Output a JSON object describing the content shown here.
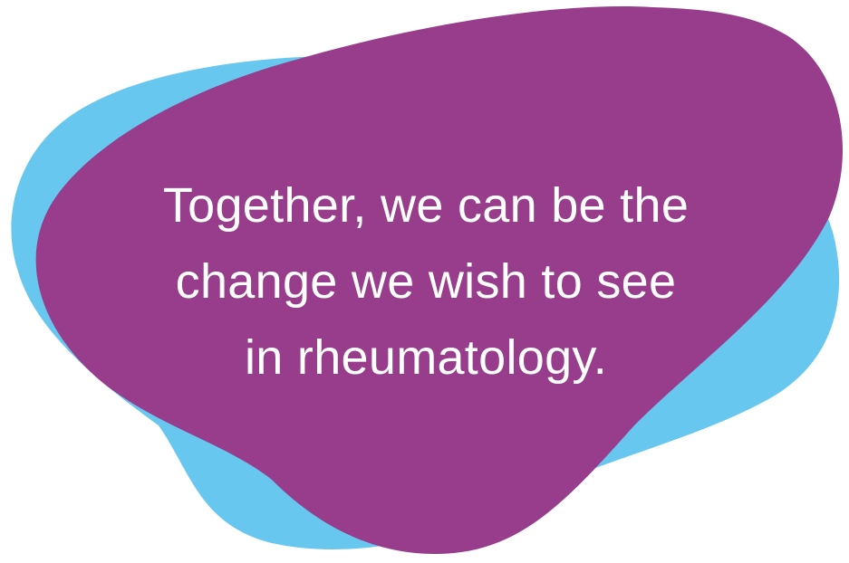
{
  "quote": {
    "lines": [
      "Together, we can be the",
      "change we wish to see",
      "in rheumatology."
    ]
  },
  "colors": {
    "back_blob": "#67c7ef",
    "front_blob": "#983c8c",
    "text": "#ffffff",
    "background": "#ffffff"
  }
}
